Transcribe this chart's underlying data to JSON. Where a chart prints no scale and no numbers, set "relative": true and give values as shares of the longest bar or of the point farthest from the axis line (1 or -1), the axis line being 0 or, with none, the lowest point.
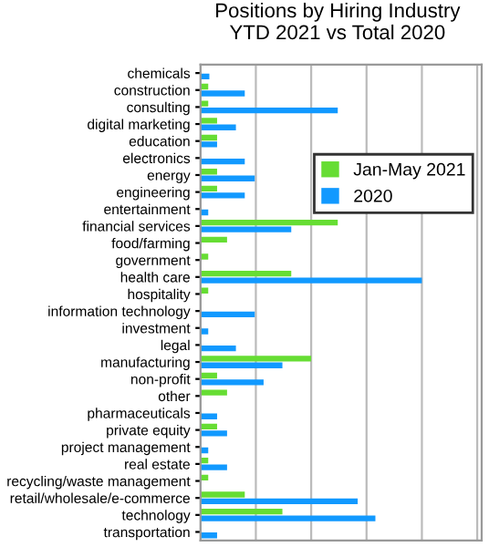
{
  "chart_data": {
    "type": "bar",
    "orientation": "horizontal",
    "relative": true,
    "title": "Positions by Hiring Industry\nYTD 2021 vs Total 2020",
    "categories": [
      "chemicals",
      "construction",
      "consulting",
      "digital marketing",
      "education",
      "electronics",
      "energy",
      "engineering",
      "entertainment",
      "financial services",
      "food/farming",
      "government",
      "health care",
      "hospitality",
      "information technology",
      "investment",
      "legal",
      "manufacturing",
      "non-profit",
      "other",
      "pharmaceuticals",
      "private equity",
      "project management",
      "real estate",
      "recycling/waste management",
      "retail/wholesale/e-commerce",
      "technology",
      "transportation"
    ],
    "series": [
      {
        "name": "Jan-May 2021",
        "color": "#66dd33",
        "values": [
          0,
          0.035,
          0.035,
          0.075,
          0.075,
          0,
          0.075,
          0.075,
          0,
          0.62,
          0.12,
          0.035,
          0.41,
          0.035,
          0,
          0,
          0,
          0.5,
          0.075,
          0.12,
          0,
          0.075,
          0,
          0.035,
          0.035,
          0.2,
          0.37,
          0
        ]
      },
      {
        "name": "2020",
        "color": "#1199ff",
        "values": [
          0.04,
          0.2,
          0.62,
          0.16,
          0.075,
          0.2,
          0.245,
          0.2,
          0.035,
          0.41,
          0,
          0,
          1,
          0,
          0.245,
          0.035,
          0.16,
          0.37,
          0.285,
          0,
          0.075,
          0.12,
          0.035,
          0.12,
          0,
          0.71,
          0.79,
          0.075
        ]
      }
    ],
    "grid": "x",
    "legend": "top right",
    "tick_labels": "y"
  }
}
